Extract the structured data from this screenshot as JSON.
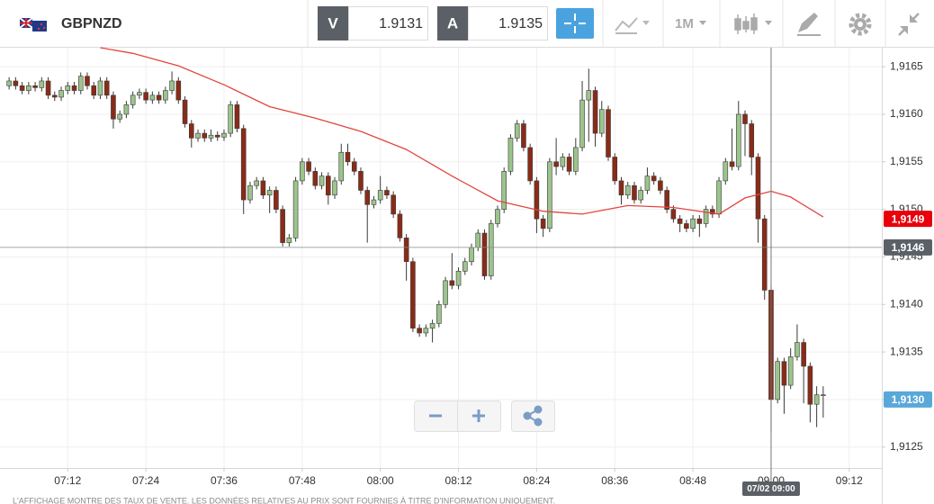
{
  "header": {
    "symbol": "GBPNZD",
    "bid_label": "V",
    "bid": 1.9131,
    "ask_label": "A",
    "ask": 1.9135,
    "timeframe": "1M"
  },
  "chart_data": {
    "type": "candlestick",
    "x": [
      423,
      424,
      425,
      426,
      427,
      428,
      429,
      430,
      431,
      432,
      433,
      434,
      435,
      436,
      437,
      438,
      439,
      440,
      441,
      442,
      443,
      444,
      445,
      446,
      447,
      448,
      449,
      450,
      451,
      452,
      453,
      454,
      455,
      456,
      457,
      458,
      459,
      460,
      461,
      462,
      463,
      464,
      465,
      466,
      467,
      468,
      469,
      470,
      471,
      472,
      473,
      474,
      475,
      476,
      477,
      478,
      479,
      480,
      481,
      482,
      483,
      484,
      485,
      486,
      487,
      488,
      489,
      490,
      491,
      492,
      493,
      494,
      495,
      496,
      497,
      498,
      499,
      500,
      501,
      502,
      503,
      504,
      505,
      506,
      507,
      508,
      509,
      510,
      511,
      512,
      513,
      514,
      515,
      516,
      517,
      518,
      519,
      520,
      521,
      522,
      523,
      524,
      525,
      526,
      527,
      528,
      529,
      530,
      531,
      532,
      533,
      534,
      535,
      536,
      537,
      538,
      539,
      540,
      541,
      542,
      543,
      544,
      545,
      546,
      547,
      548
    ],
    "candles": [
      [
        1.9163,
        1.91639,
        1.91626,
        1.91635
      ],
      [
        1.91635,
        1.91639,
        1.91626,
        1.9163
      ],
      [
        1.9163,
        1.91634,
        1.91621,
        1.91625
      ],
      [
        1.91625,
        1.91634,
        1.91621,
        1.9163
      ],
      [
        1.9163,
        1.91634,
        1.91624,
        1.91628
      ],
      [
        1.91628,
        1.91639,
        1.91624,
        1.91635
      ],
      [
        1.91635,
        1.91639,
        1.91616,
        1.9162
      ],
      [
        1.9162,
        1.91624,
        1.91614,
        1.91618
      ],
      [
        1.91618,
        1.91629,
        1.91614,
        1.91625
      ],
      [
        1.91625,
        1.91634,
        1.91621,
        1.9163
      ],
      [
        1.9163,
        1.91634,
        1.91621,
        1.91625
      ],
      [
        1.91625,
        1.91644,
        1.91621,
        1.9164
      ],
      [
        1.9164,
        1.91644,
        1.91626,
        1.9163
      ],
      [
        1.9163,
        1.91634,
        1.91616,
        1.9162
      ],
      [
        1.9162,
        1.91639,
        1.91616,
        1.91635
      ],
      [
        1.91635,
        1.91639,
        1.91616,
        1.9162
      ],
      [
        1.9162,
        1.91624,
        1.91585,
        1.91595
      ],
      [
        1.91595,
        1.91604,
        1.91591,
        1.916
      ],
      [
        1.916,
        1.91614,
        1.91596,
        1.9161
      ],
      [
        1.9161,
        1.91624,
        1.91606,
        1.9162
      ],
      [
        1.9162,
        1.91627,
        1.91616,
        1.91623
      ],
      [
        1.91623,
        1.91627,
        1.91611,
        1.91615
      ],
      [
        1.91615,
        1.91624,
        1.91611,
        1.9162
      ],
      [
        1.9162,
        1.91624,
        1.91611,
        1.91615
      ],
      [
        1.91615,
        1.91629,
        1.91611,
        1.91625
      ],
      [
        1.91625,
        1.91645,
        1.91621,
        1.91635
      ],
      [
        1.91635,
        1.91639,
        1.91611,
        1.91615
      ],
      [
        1.91615,
        1.91619,
        1.91586,
        1.9159
      ],
      [
        1.9159,
        1.91594,
        1.91565,
        1.91575
      ],
      [
        1.91575,
        1.91584,
        1.91571,
        1.9158
      ],
      [
        1.9158,
        1.91584,
        1.91571,
        1.91575
      ],
      [
        1.91575,
        1.91584,
        1.91571,
        1.91578
      ],
      [
        1.91578,
        1.91582,
        1.91572,
        1.91576
      ],
      [
        1.91576,
        1.91584,
        1.91572,
        1.9158
      ],
      [
        1.9158,
        1.91614,
        1.91576,
        1.9161
      ],
      [
        1.9161,
        1.91614,
        1.91581,
        1.91585
      ],
      [
        1.91585,
        1.91589,
        1.91495,
        1.9151
      ],
      [
        1.9151,
        1.91529,
        1.91506,
        1.91525
      ],
      [
        1.91525,
        1.91534,
        1.91521,
        1.9153
      ],
      [
        1.9153,
        1.91534,
        1.91511,
        1.91515
      ],
      [
        1.91515,
        1.91524,
        1.91496,
        1.9152
      ],
      [
        1.9152,
        1.91524,
        1.91496,
        1.915
      ],
      [
        1.915,
        1.91504,
        1.91461,
        1.91465
      ],
      [
        1.91465,
        1.91474,
        1.91461,
        1.9147
      ],
      [
        1.9147,
        1.91534,
        1.91466,
        1.9153
      ],
      [
        1.9153,
        1.91554,
        1.91526,
        1.9155
      ],
      [
        1.9155,
        1.91554,
        1.91536,
        1.9154
      ],
      [
        1.9154,
        1.91544,
        1.91521,
        1.91525
      ],
      [
        1.91525,
        1.91539,
        1.91521,
        1.91535
      ],
      [
        1.91535,
        1.91539,
        1.91505,
        1.91515
      ],
      [
        1.91515,
        1.91534,
        1.91511,
        1.9153
      ],
      [
        1.9153,
        1.91569,
        1.91526,
        1.9156
      ],
      [
        1.9156,
        1.91569,
        1.91546,
        1.9155
      ],
      [
        1.9155,
        1.91554,
        1.91536,
        1.9154
      ],
      [
        1.9154,
        1.91544,
        1.91516,
        1.9152
      ],
      [
        1.9152,
        1.91524,
        1.91465,
        1.91505
      ],
      [
        1.91505,
        1.91514,
        1.91501,
        1.9151
      ],
      [
        1.9151,
        1.91535,
        1.91506,
        1.9152
      ],
      [
        1.9152,
        1.91524,
        1.91511,
        1.91515
      ],
      [
        1.91515,
        1.91519,
        1.91491,
        1.91495
      ],
      [
        1.91495,
        1.91499,
        1.91466,
        1.9147
      ],
      [
        1.9147,
        1.91474,
        1.91425,
        1.91445
      ],
      [
        1.91445,
        1.91449,
        1.91371,
        1.91375
      ],
      [
        1.91375,
        1.91379,
        1.91366,
        1.9137
      ],
      [
        1.9137,
        1.91379,
        1.91366,
        1.91375
      ],
      [
        1.91375,
        1.91384,
        1.9136,
        1.9138
      ],
      [
        1.9138,
        1.91404,
        1.91376,
        1.914
      ],
      [
        1.914,
        1.91429,
        1.91396,
        1.91425
      ],
      [
        1.91425,
        1.91454,
        1.91416,
        1.9142
      ],
      [
        1.9142,
        1.91439,
        1.91416,
        1.91435
      ],
      [
        1.91435,
        1.91449,
        1.91431,
        1.91445
      ],
      [
        1.91445,
        1.91464,
        1.91441,
        1.9146
      ],
      [
        1.9146,
        1.91479,
        1.91456,
        1.91475
      ],
      [
        1.91475,
        1.91479,
        1.91426,
        1.9143
      ],
      [
        1.9143,
        1.91489,
        1.91426,
        1.91485
      ],
      [
        1.91485,
        1.91504,
        1.91481,
        1.915
      ],
      [
        1.915,
        1.91544,
        1.91496,
        1.9154
      ],
      [
        1.9154,
        1.91579,
        1.91536,
        1.91575
      ],
      [
        1.91575,
        1.91594,
        1.91571,
        1.9159
      ],
      [
        1.9159,
        1.91594,
        1.91561,
        1.91565
      ],
      [
        1.91565,
        1.91569,
        1.91526,
        1.9153
      ],
      [
        1.9153,
        1.91534,
        1.91475,
        1.9149
      ],
      [
        1.9149,
        1.91494,
        1.91471,
        1.9148
      ],
      [
        1.9148,
        1.91554,
        1.91476,
        1.9155
      ],
      [
        1.9155,
        1.91575,
        1.91536,
        1.91545
      ],
      [
        1.91545,
        1.91559,
        1.91541,
        1.91555
      ],
      [
        1.91555,
        1.91559,
        1.91536,
        1.9154
      ],
      [
        1.9154,
        1.91575,
        1.91536,
        1.91565
      ],
      [
        1.91565,
        1.91635,
        1.91561,
        1.91615
      ],
      [
        1.91615,
        1.91648,
        1.91571,
        1.91625
      ],
      [
        1.91625,
        1.91629,
        1.91566,
        1.9158
      ],
      [
        1.9158,
        1.91614,
        1.91576,
        1.91605
      ],
      [
        1.91605,
        1.91609,
        1.91551,
        1.91555
      ],
      [
        1.91555,
        1.91559,
        1.91526,
        1.9153
      ],
      [
        1.9153,
        1.91534,
        1.91505,
        1.91515
      ],
      [
        1.91515,
        1.91529,
        1.91511,
        1.91525
      ],
      [
        1.91525,
        1.91529,
        1.91506,
        1.9151
      ],
      [
        1.9151,
        1.91524,
        1.91506,
        1.9152
      ],
      [
        1.9152,
        1.91544,
        1.91516,
        1.91535
      ],
      [
        1.91535,
        1.91539,
        1.91526,
        1.9153
      ],
      [
        1.9153,
        1.91534,
        1.91516,
        1.9152
      ],
      [
        1.9152,
        1.91524,
        1.91496,
        1.915
      ],
      [
        1.915,
        1.91504,
        1.91486,
        1.9149
      ],
      [
        1.9149,
        1.91494,
        1.91476,
        1.91485
      ],
      [
        1.91485,
        1.91489,
        1.91476,
        1.9148
      ],
      [
        1.9148,
        1.91494,
        1.91476,
        1.9149
      ],
      [
        1.9149,
        1.91494,
        1.91471,
        1.91485
      ],
      [
        1.91485,
        1.91504,
        1.91481,
        1.915
      ],
      [
        1.915,
        1.91504,
        1.91491,
        1.91495
      ],
      [
        1.91495,
        1.91534,
        1.91491,
        1.9153
      ],
      [
        1.9153,
        1.91554,
        1.91526,
        1.9155
      ],
      [
        1.9155,
        1.91585,
        1.91541,
        1.91545
      ],
      [
        1.91545,
        1.91614,
        1.91541,
        1.916
      ],
      [
        1.916,
        1.91604,
        1.91556,
        1.9159
      ],
      [
        1.9159,
        1.91594,
        1.91536,
        1.91555
      ],
      [
        1.91555,
        1.91559,
        1.91465,
        1.9149
      ],
      [
        1.9149,
        1.91494,
        1.91405,
        1.91415
      ],
      [
        1.91415,
        1.91419,
        1.91265,
        1.913
      ],
      [
        1.913,
        1.91344,
        1.91296,
        1.9134
      ],
      [
        1.9134,
        1.91344,
        1.91285,
        1.91315
      ],
      [
        1.91315,
        1.91354,
        1.91311,
        1.91345
      ],
      [
        1.91345,
        1.91379,
        1.91341,
        1.9136
      ],
      [
        1.9136,
        1.91364,
        1.91296,
        1.91335
      ],
      [
        1.91335,
        1.91339,
        1.91276,
        1.91295
      ],
      [
        1.91295,
        1.91314,
        1.91271,
        1.91305
      ],
      [
        1.91305,
        1.91314,
        1.91281,
        1.91305
      ]
    ],
    "up_color": "#9cc48c",
    "down_color": "#8a2b17",
    "ma": {
      "color": "#e2463f",
      "x": [
        437,
        442,
        449,
        456,
        463,
        470,
        477,
        484,
        491,
        498,
        505,
        511,
        518,
        525,
        532,
        536,
        540,
        543,
        548
      ],
      "values": [
        1.9167,
        1.91664,
        1.91651,
        1.91631,
        1.91608,
        1.91596,
        1.91582,
        1.91563,
        1.91535,
        1.91509,
        1.91498,
        1.91495,
        1.91504,
        1.91502,
        1.91495,
        1.91512,
        1.91519,
        1.91513,
        1.91492
      ]
    },
    "xlim": [
      421.6,
      557
    ],
    "ylim": [
      1.91228,
      1.9167
    ],
    "xticks": [
      {
        "value": 432,
        "label": "07:12"
      },
      {
        "value": 444,
        "label": "07:24"
      },
      {
        "value": 456,
        "label": "07:36"
      },
      {
        "value": 468,
        "label": "07:48"
      },
      {
        "value": 480,
        "label": "08:00"
      },
      {
        "value": 492,
        "label": "08:12"
      },
      {
        "value": 504,
        "label": "08:24"
      },
      {
        "value": 516,
        "label": "08:36"
      },
      {
        "value": 528,
        "label": "08:48"
      },
      {
        "value": 540,
        "label": "09:00"
      },
      {
        "value": 552,
        "label": "09:12"
      }
    ],
    "yticks": [
      {
        "value": 1.9125,
        "label": "1,9125"
      },
      {
        "value": 1.913,
        "label": "1,9130"
      },
      {
        "value": 1.9135,
        "label": "1,9135"
      },
      {
        "value": 1.914,
        "label": "1,9140"
      },
      {
        "value": 1.9145,
        "label": "1,9145"
      },
      {
        "value": 1.915,
        "label": "1,9150"
      },
      {
        "value": 1.9155,
        "label": "1,9155"
      },
      {
        "value": 1.916,
        "label": "1,9160"
      },
      {
        "value": 1.9165,
        "label": "1,9165"
      }
    ],
    "grid": true,
    "price_labels": [
      {
        "value": 1.9149,
        "label": "1,9149",
        "color": "#e8000b"
      },
      {
        "value": 1.913,
        "label": "1,9130",
        "color": "#5aa8d9"
      }
    ],
    "crosshair": {
      "x": 540,
      "y": 1.9146,
      "x_label": "07/02 09:00",
      "y_label": "1,9146"
    }
  },
  "footer": "L'AFFICHAGE MONTRE DES TAUX DE VENTE. LES DONNÉES RELATIVES AU PRIX SONT FOURNIES À TITRE D'INFORMATION UNIQUEMENT."
}
